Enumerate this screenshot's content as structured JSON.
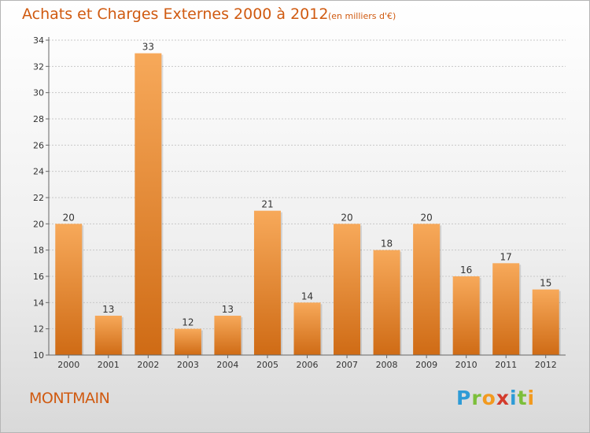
{
  "title": "Achats et Charges Externes 2000 à 2012",
  "subtitle": "(en milliers d'€)",
  "commune": "MONTMAIN",
  "brand": {
    "letters": [
      "P",
      "r",
      "o",
      "x",
      "i",
      "t",
      "i"
    ],
    "colors": [
      "#2e9bd6",
      "#7cbf3a",
      "#f29a1f",
      "#d33b2c",
      "#2e9bd6",
      "#7cbf3a",
      "#f29a1f"
    ]
  },
  "colors": {
    "bar_top": "#f7a95a",
    "bar_bottom": "#cf6b15",
    "axis": "#666666",
    "grid": "#c8c8c8",
    "title": "#d05a10"
  },
  "chart_data": {
    "type": "bar",
    "title": "Achats et Charges Externes 2000 à 2012",
    "subtitle": "(en milliers d'€)",
    "categories": [
      "2000",
      "2001",
      "2002",
      "2003",
      "2004",
      "2005",
      "2006",
      "2007",
      "2008",
      "2009",
      "2010",
      "2011",
      "2012"
    ],
    "values": [
      20,
      13,
      33,
      12,
      13,
      21,
      14,
      20,
      18,
      20,
      16,
      17,
      15
    ],
    "data_labels": [
      "20",
      "13",
      "33",
      "12",
      "13",
      "21",
      "14",
      "20",
      "18",
      "20",
      "16",
      "17",
      "15"
    ],
    "ylim": [
      10,
      34
    ],
    "yticks": [
      10,
      12,
      14,
      16,
      18,
      20,
      22,
      24,
      26,
      28,
      30,
      32,
      34
    ],
    "ytick_labels": [
      "10",
      "12",
      "14",
      "16",
      "18",
      "20",
      "22",
      "24",
      "26",
      "28",
      "30",
      "32",
      "34"
    ],
    "grid": true,
    "legend": "none"
  }
}
